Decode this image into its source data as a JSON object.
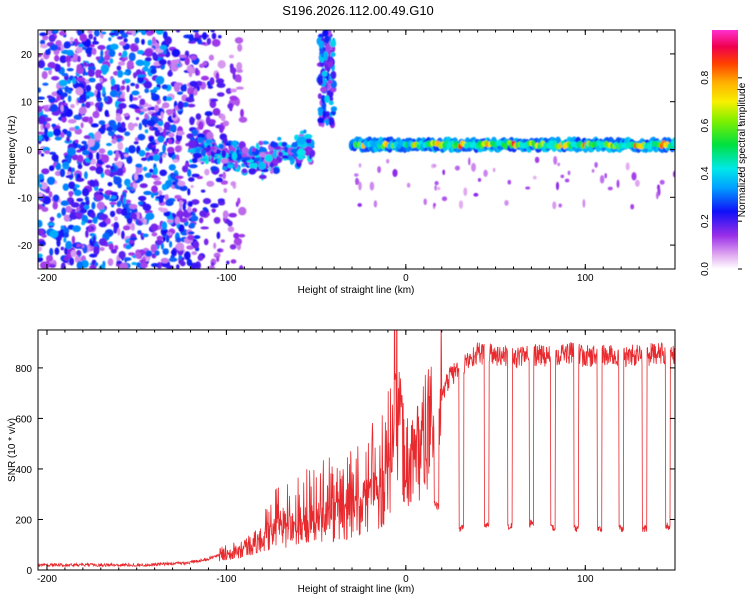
{
  "title": "S196.2026.112.00.49.G10",
  "chart_data": [
    {
      "type": "heatmap",
      "name": "spectrogram",
      "xlabel": "Height of straight line (km)",
      "ylabel": "Frequency (Hz)",
      "xlim": [
        -205,
        150
      ],
      "ylim": [
        -25,
        25
      ],
      "xticks": [
        -200,
        -100,
        0,
        100
      ],
      "yticks": [
        -20,
        -10,
        0,
        10,
        20
      ],
      "colorbar": {
        "label": "Normalized spectral amplitude",
        "range": [
          0,
          1
        ],
        "ticks": [
          0,
          0.2,
          0.4,
          0.6,
          0.8
        ],
        "tick_labels": [
          "0.0",
          "0.2",
          "0.4",
          "0.6",
          "0.8"
        ]
      },
      "features": [
        {
          "name": "scattered noise",
          "x_range": [
            -205,
            -110
          ],
          "freq_range": [
            -25,
            25
          ],
          "amplitude": 0.2
        },
        {
          "name": "emerging tone",
          "x_range": [
            -120,
            -52
          ],
          "freq_center": 1,
          "amplitude": 0.35
        },
        {
          "name": "spike near -45 km",
          "x_range": [
            -48,
            -40
          ],
          "freq_range": [
            5,
            25
          ],
          "amplitude": 0.3
        },
        {
          "name": "carrier",
          "x_range": [
            -30,
            150
          ],
          "freq_center": 1,
          "amplitude": 0.8
        }
      ]
    },
    {
      "type": "line",
      "name": "snr",
      "xlabel": "Height of straight line (km)",
      "ylabel": "SNR (10 * v/v)",
      "xlim": [
        -205,
        150
      ],
      "ylim": [
        0,
        950
      ],
      "xticks": [
        -200,
        -100,
        0,
        100
      ],
      "yticks": [
        0,
        200,
        400,
        600,
        800
      ],
      "series": [
        {
          "name": "SNR",
          "color": "#e8292d",
          "x": [
            -205,
            -190,
            -175,
            -160,
            -145,
            -130,
            -120,
            -110,
            -100,
            -90,
            -80,
            -70,
            -60,
            -50,
            -40,
            -30,
            -20,
            -10,
            -5,
            0,
            5,
            10,
            15,
            20,
            25,
            30,
            35,
            40,
            50,
            60,
            70,
            80,
            90,
            100,
            110,
            120,
            130,
            140,
            150
          ],
          "y": [
            20,
            20,
            20,
            20,
            20,
            25,
            30,
            45,
            70,
            90,
            120,
            150,
            170,
            190,
            200,
            220,
            260,
            320,
            600,
            420,
            460,
            520,
            600,
            700,
            770,
            800,
            830,
            860,
            850,
            840,
            850,
            850,
            860,
            845,
            850,
            845,
            850,
            855,
            860
          ]
        }
      ],
      "dropouts": [
        {
          "x": 17,
          "depth": 240
        },
        {
          "x": 31,
          "depth": 150
        },
        {
          "x": 45,
          "depth": 160
        },
        {
          "x": 58,
          "depth": 160
        },
        {
          "x": 70,
          "depth": 170
        },
        {
          "x": 82,
          "depth": 150
        },
        {
          "x": 95,
          "depth": 150
        },
        {
          "x": 108,
          "depth": 150
        },
        {
          "x": 120,
          "depth": 150
        },
        {
          "x": 133,
          "depth": 150
        },
        {
          "x": 146,
          "depth": 160
        }
      ]
    }
  ]
}
